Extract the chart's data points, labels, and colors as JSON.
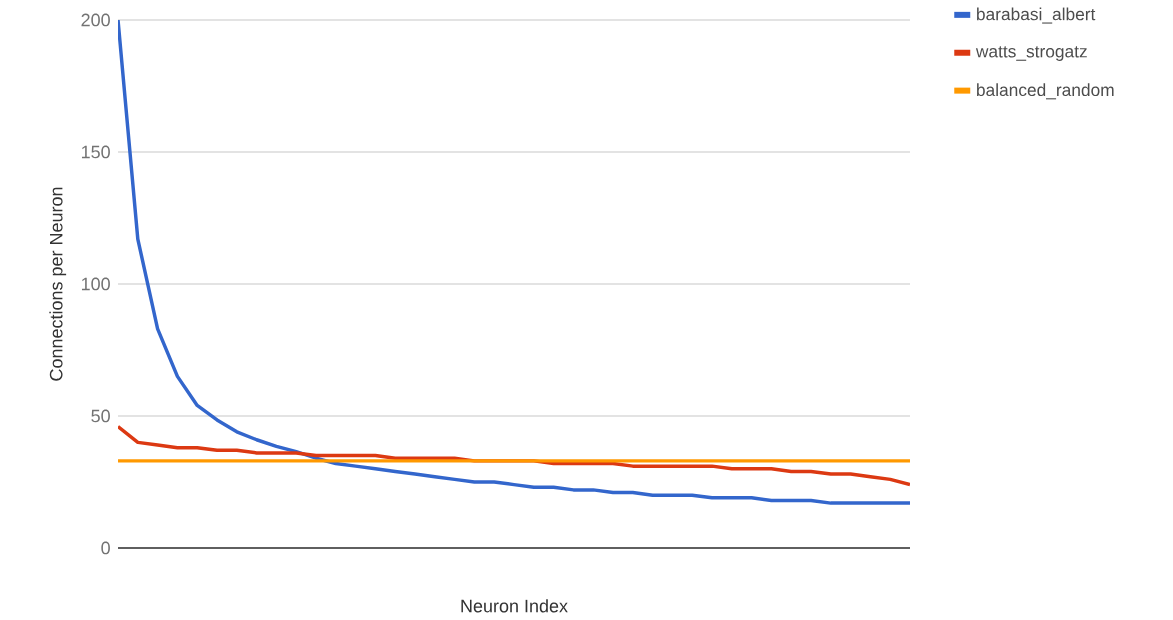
{
  "chart_data": {
    "type": "line",
    "xlabel": "Neuron Index",
    "ylabel": "Connections per Neuron",
    "categories": [
      null,
      null,
      null,
      null,
      null,
      null,
      null,
      null,
      null,
      null,
      null,
      null,
      null,
      null,
      null,
      null,
      null,
      null,
      null,
      null,
      null,
      null,
      null,
      null,
      null,
      null,
      null,
      null,
      null,
      null,
      null,
      null,
      null,
      null,
      null,
      null,
      null,
      null,
      null,
      null,
      null
    ],
    "ylim": [
      0,
      200
    ],
    "yticks": [
      0,
      50,
      100,
      150,
      200
    ],
    "grid": "y",
    "legend": "top right",
    "marker": "none",
    "line_style": "solid",
    "series": [
      {
        "name": "barabasi_albert",
        "color": "#3366cc",
        "values": [
          200,
          117,
          83,
          65,
          54,
          48.5,
          44,
          41,
          38.5,
          36.5,
          34,
          32,
          31,
          30,
          29,
          28,
          27,
          26,
          25,
          25,
          24,
          23,
          23,
          22,
          22,
          21,
          21,
          20,
          20,
          20,
          19,
          19,
          19,
          18,
          18,
          18,
          17,
          17,
          17,
          17,
          17
        ]
      },
      {
        "name": "watts_strogatz",
        "color": "#dc3912",
        "values": [
          46,
          40,
          39,
          38,
          38,
          37,
          37,
          36,
          36,
          36,
          35,
          35,
          35,
          35,
          34,
          34,
          34,
          34,
          33,
          33,
          33,
          33,
          32,
          32,
          32,
          32,
          31,
          31,
          31,
          31,
          31,
          30,
          30,
          30,
          29,
          29,
          28,
          28,
          27,
          26,
          24
        ]
      },
      {
        "name": "balanced_random",
        "color": "#ff9900",
        "values": [
          33,
          33,
          33,
          33,
          33,
          33,
          33,
          33,
          33,
          33,
          33,
          33,
          33,
          33,
          33,
          33,
          33,
          33,
          33,
          33,
          33,
          33,
          33,
          33,
          33,
          33,
          33,
          33,
          33,
          33,
          33,
          33,
          33,
          33,
          33,
          33,
          33,
          33,
          33,
          33,
          33
        ]
      }
    ]
  }
}
